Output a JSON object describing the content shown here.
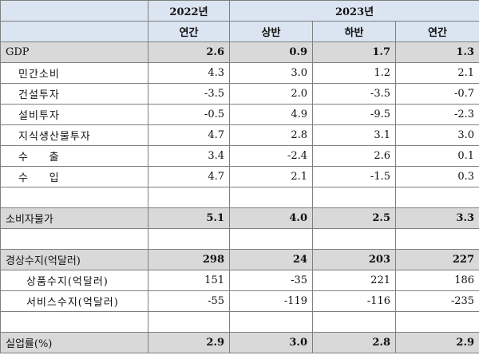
{
  "header": {
    "year_2022": "2022년",
    "year_2023": "2023년",
    "col_2022_annual": "연간",
    "col_2023_h1": "상반",
    "col_2023_h2": "하반",
    "col_2023_annual": "연간"
  },
  "rows": [
    {
      "label": "GDP",
      "values": [
        "2.6",
        "0.9",
        "1.7",
        "1.3"
      ]
    },
    {
      "label": "민간소비",
      "values": [
        "4.3",
        "3.0",
        "1.2",
        "2.1"
      ]
    },
    {
      "label": "건설투자",
      "values": [
        "-3.5",
        "2.0",
        "-3.5",
        "-0.7"
      ]
    },
    {
      "label": "설비투자",
      "values": [
        "-0.5",
        "4.9",
        "-9.5",
        "-2.3"
      ]
    },
    {
      "label": "지식생산물투자",
      "values": [
        "4.7",
        "2.8",
        "3.1",
        "3.0"
      ]
    },
    {
      "label": "수     출",
      "values": [
        "3.4",
        "-2.4",
        "2.6",
        "0.1"
      ]
    },
    {
      "label": "수     입",
      "values": [
        "4.7",
        "2.1",
        "-1.5",
        "0.3"
      ]
    },
    {
      "label": "소비자물가",
      "values": [
        "5.1",
        "4.0",
        "2.5",
        "3.3"
      ]
    },
    {
      "label": "경상수지(억달러)",
      "values": [
        "298",
        "24",
        "203",
        "227"
      ]
    },
    {
      "label": "상품수지(억달러)",
      "values": [
        "151",
        "-35",
        "221",
        "186"
      ]
    },
    {
      "label": "서비스수지(억달러)",
      "values": [
        "-55",
        "-119",
        "-116",
        "-235"
      ]
    },
    {
      "label": "실업률(%)",
      "values": [
        "2.9",
        "3.0",
        "2.8",
        "2.9"
      ]
    }
  ]
}
